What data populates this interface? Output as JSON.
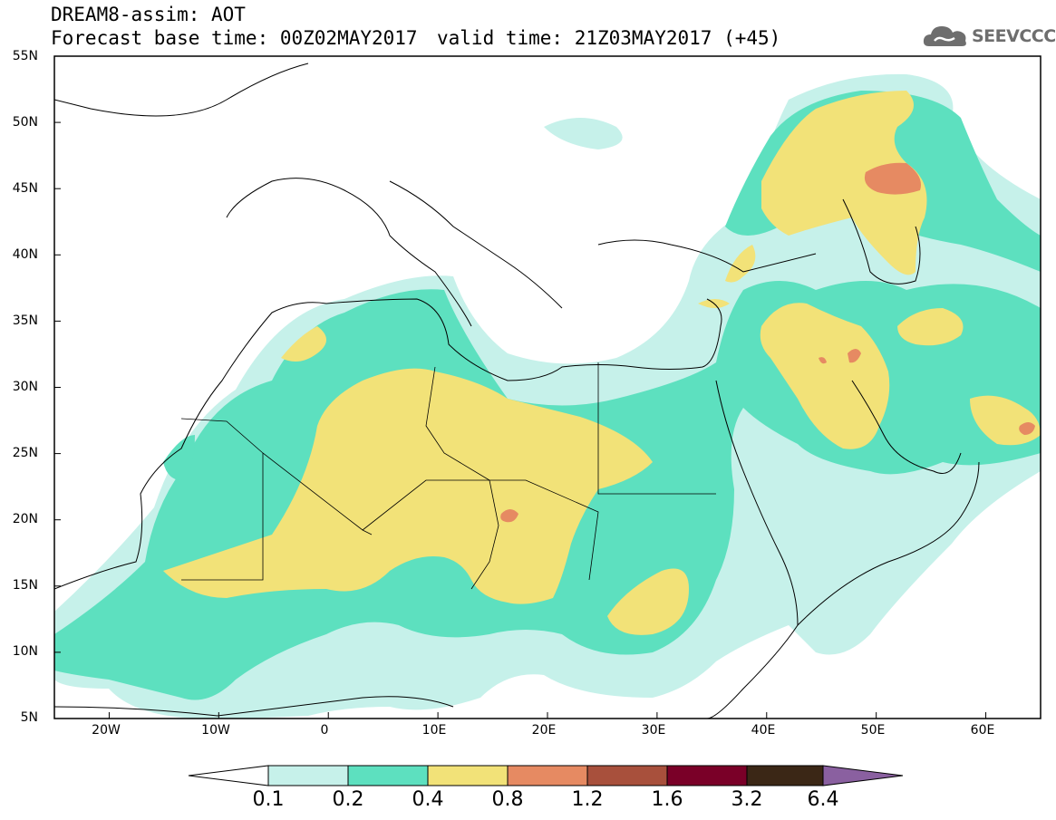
{
  "header": {
    "title": "DREAM8-assim: AOT",
    "base_time": "Forecast base time: 00Z02MAY2017",
    "valid_time": "valid time: 21Z03MAY2017 (+45)"
  },
  "logo": {
    "text": "SEEVCCC",
    "icon": "cloud-icon"
  },
  "map": {
    "projection": "lat-lon",
    "lon_range": [
      -25,
      65
    ],
    "lat_range": [
      5,
      55
    ],
    "lat_ticks": [
      "55N",
      "50N",
      "45N",
      "40N",
      "35N",
      "30N",
      "25N",
      "20N",
      "15N",
      "10N",
      "5N"
    ],
    "lon_ticks": [
      "20W",
      "10W",
      "0",
      "10E",
      "20E",
      "30E",
      "40E",
      "50E",
      "60E"
    ]
  },
  "colorbar": {
    "labels": [
      "0.1",
      "0.2",
      "0.4",
      "0.8",
      "1.2",
      "1.6",
      "3.2",
      "6.4"
    ],
    "colors": [
      "#ffffff",
      "#c6f1ea",
      "#5de0bf",
      "#f2e278",
      "#e68a62",
      "#a8503c",
      "#7a0028",
      "#3b2716",
      "#8a60a0"
    ]
  }
}
